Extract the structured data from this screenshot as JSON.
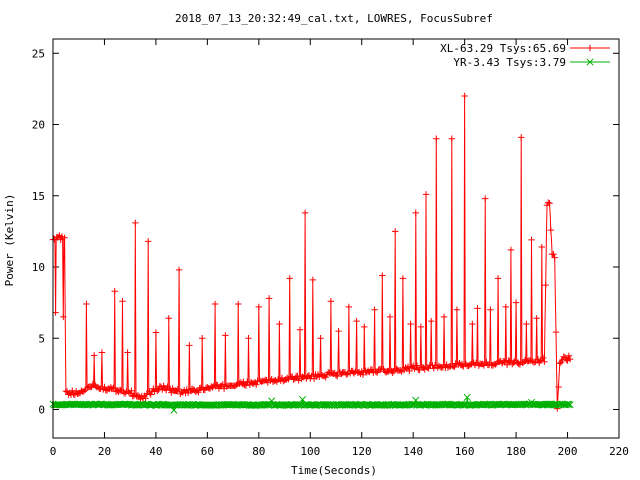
{
  "chart_data": {
    "type": "line",
    "title": "2018_07_13_20:32:49_cal.txt, LOWRES, FocusSubref",
    "xlabel": "Time(Seconds)",
    "ylabel": "Power (Kelvin)",
    "xlim": [
      0,
      220
    ],
    "ylim": [
      -2,
      26
    ],
    "xticks": [
      0,
      20,
      40,
      60,
      80,
      100,
      120,
      140,
      160,
      180,
      200,
      220
    ],
    "yticks": [
      0,
      5,
      10,
      15,
      20,
      25
    ],
    "legend_position": "top-right",
    "series": [
      {
        "name": "XL-63.29 Tsys:65.69",
        "color": "#ff0000",
        "marker": "plus",
        "baseline": [
          [
            0,
            12.1
          ],
          [
            4.5,
            12.0
          ],
          [
            5,
            1.2
          ],
          [
            10,
            1.1
          ],
          [
            12,
            1.4
          ],
          [
            15,
            1.7
          ],
          [
            20,
            1.5
          ],
          [
            25,
            1.4
          ],
          [
            30,
            1.2
          ],
          [
            33,
            0.9
          ],
          [
            35,
            0.8
          ],
          [
            38,
            1.2
          ],
          [
            42,
            1.6
          ],
          [
            45,
            1.4
          ],
          [
            50,
            1.2
          ],
          [
            55,
            1.3
          ],
          [
            60,
            1.5
          ],
          [
            70,
            1.7
          ],
          [
            80,
            1.9
          ],
          [
            90,
            2.1
          ],
          [
            100,
            2.3
          ],
          [
            110,
            2.5
          ],
          [
            120,
            2.6
          ],
          [
            130,
            2.7
          ],
          [
            140,
            2.9
          ],
          [
            150,
            3.0
          ],
          [
            160,
            3.1
          ],
          [
            170,
            3.2
          ],
          [
            180,
            3.3
          ],
          [
            190,
            3.4
          ],
          [
            191,
            3.5
          ],
          [
            192,
            14.3
          ],
          [
            193,
            14.5
          ],
          [
            194,
            11.0
          ],
          [
            195,
            10.8
          ],
          [
            196,
            0.1
          ],
          [
            197,
            3.4
          ],
          [
            199,
            3.6
          ],
          [
            201,
            3.6
          ]
        ],
        "spikes": [
          [
            1,
            6.8
          ],
          [
            2,
            12.1
          ],
          [
            4,
            6.5
          ],
          [
            13,
            7.4
          ],
          [
            16,
            3.8
          ],
          [
            19,
            4.0
          ],
          [
            24,
            8.3
          ],
          [
            27,
            7.6
          ],
          [
            29,
            4.0
          ],
          [
            32,
            13.1
          ],
          [
            37,
            11.8
          ],
          [
            40,
            5.4
          ],
          [
            45,
            6.4
          ],
          [
            49,
            9.8
          ],
          [
            53,
            4.5
          ],
          [
            58,
            5.0
          ],
          [
            63,
            7.4
          ],
          [
            67,
            5.2
          ],
          [
            72,
            7.4
          ],
          [
            76,
            5.0
          ],
          [
            80,
            7.2
          ],
          [
            84,
            7.8
          ],
          [
            88,
            6.0
          ],
          [
            92,
            9.2
          ],
          [
            96,
            5.6
          ],
          [
            98,
            13.8
          ],
          [
            101,
            9.1
          ],
          [
            104,
            5.0
          ],
          [
            108,
            7.6
          ],
          [
            111,
            5.5
          ],
          [
            115,
            7.2
          ],
          [
            118,
            6.2
          ],
          [
            121,
            5.8
          ],
          [
            125,
            7.0
          ],
          [
            128,
            9.4
          ],
          [
            131,
            6.5
          ],
          [
            133,
            12.5
          ],
          [
            136,
            9.2
          ],
          [
            139,
            6.0
          ],
          [
            141,
            13.8
          ],
          [
            143,
            5.8
          ],
          [
            145,
            15.1
          ],
          [
            147,
            6.2
          ],
          [
            149,
            19.0
          ],
          [
            152,
            6.5
          ],
          [
            155,
            19.0
          ],
          [
            157,
            7.0
          ],
          [
            160,
            22.0
          ],
          [
            163,
            6.0
          ],
          [
            165,
            7.1
          ],
          [
            168,
            14.8
          ],
          [
            170,
            7.0
          ],
          [
            173,
            9.2
          ],
          [
            176,
            7.2
          ],
          [
            178,
            11.2
          ],
          [
            180,
            7.5
          ],
          [
            182,
            19.1
          ],
          [
            184,
            6.0
          ],
          [
            186,
            11.9
          ],
          [
            188,
            6.4
          ],
          [
            190,
            11.4
          ]
        ]
      },
      {
        "name": "YR-3.43 Tsys:3.79",
        "color": "#00b000",
        "marker": "cross",
        "baseline": [
          [
            0,
            0.35
          ],
          [
            50,
            0.33
          ],
          [
            100,
            0.32
          ],
          [
            150,
            0.34
          ],
          [
            201,
            0.35
          ]
        ],
        "spikes": [
          [
            47,
            -0.05
          ],
          [
            85,
            0.6
          ],
          [
            97,
            0.7
          ],
          [
            141,
            0.65
          ],
          [
            161,
            0.85
          ],
          [
            186,
            0.5
          ]
        ]
      }
    ]
  }
}
